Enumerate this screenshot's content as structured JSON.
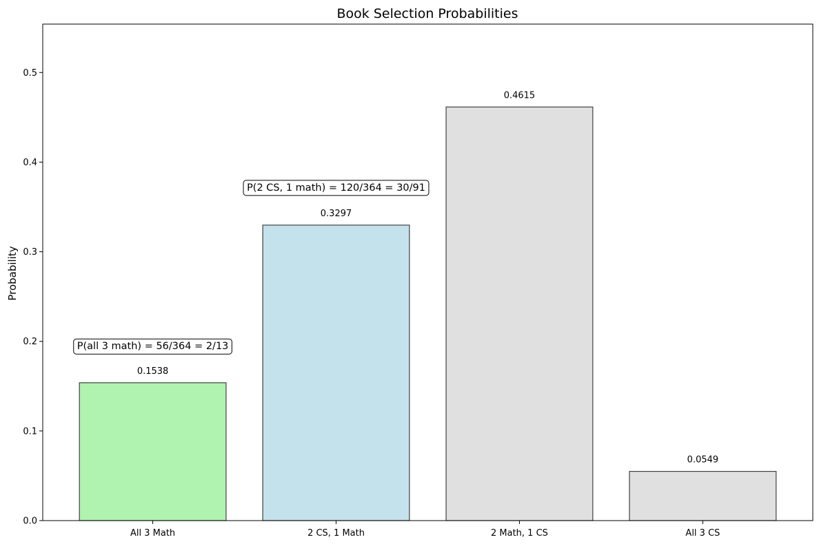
{
  "chart_data": {
    "type": "bar",
    "title": "Book Selection Probabilities",
    "ylabel": "Probability",
    "xlabel": "",
    "categories": [
      "All 3 Math",
      "2 CS, 1 Math",
      "2 Math, 1 CS",
      "All 3 CS"
    ],
    "values": [
      0.1538,
      0.3297,
      0.4615,
      0.0549
    ],
    "value_labels": [
      "0.1538",
      "0.3297",
      "0.4615",
      "0.0549"
    ],
    "bar_colors": [
      "#b0f2b0",
      "#c4e2ec",
      "#e0e0e0",
      "#e0e0e0"
    ],
    "bar_edge_color": "#404040",
    "ylim": [
      0,
      0.554
    ],
    "yticks": [
      0.0,
      0.1,
      0.2,
      0.3,
      0.4,
      0.5
    ],
    "ytick_labels": [
      "0.0",
      "0.1",
      "0.2",
      "0.3",
      "0.4",
      "0.5"
    ],
    "grid": false,
    "annotations": [
      {
        "text": "P(all 3 math) = 56/364 = 2/13",
        "category_index": 0,
        "y": 0.195
      },
      {
        "text": "P(2 CS, 1 math) = 120/364 = 30/91",
        "category_index": 1,
        "y": 0.372
      }
    ]
  }
}
